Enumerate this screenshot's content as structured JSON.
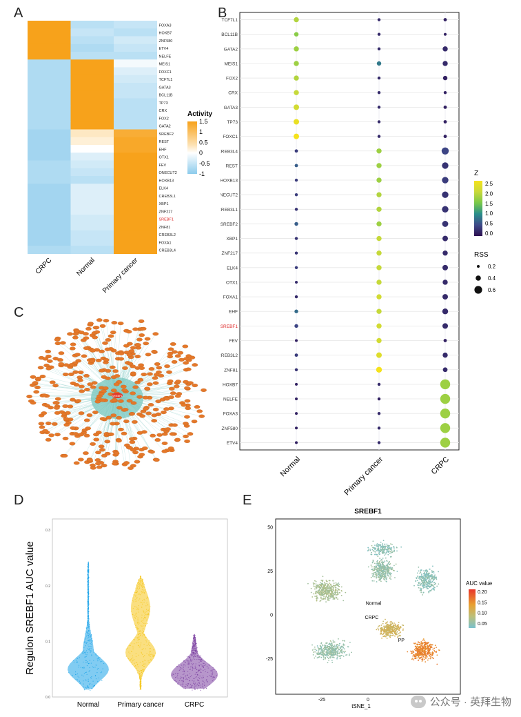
{
  "panels": {
    "A": {
      "letter": "A",
      "legend_title": "Activity",
      "legend_ticks": [
        "1.5",
        "1",
        "0.5",
        "0",
        "-0.5",
        "-1"
      ],
      "columns": [
        "CRPC",
        "Normal",
        "Primary cancer"
      ],
      "rows": [
        "FOXA3",
        "HOXB7",
        "ZNF580",
        "ETV4",
        "NELFE",
        "MEIS1",
        "FOXC1",
        "TCF7L1",
        "GATA3",
        "BCL11B",
        "TP73",
        "CRX",
        "FOX2",
        "GATA2",
        "SREBF2",
        "REST",
        "EHF",
        "OTX1",
        "FEV",
        "ONECUT2",
        "HOXB13",
        "ELK4",
        "CREB3L1",
        "XBP1",
        "ZNF217",
        "SREBF1",
        "ZNF81",
        "CREB3L2",
        "FOXA1",
        "CREB3L4"
      ],
      "highlight_row": "SREBF1",
      "values": [
        [
          1.5,
          -0.6,
          -0.5
        ],
        [
          1.5,
          -0.5,
          -0.6
        ],
        [
          1.5,
          -0.6,
          -0.4
        ],
        [
          1.5,
          -0.7,
          -0.5
        ],
        [
          1.5,
          -0.6,
          -0.6
        ],
        [
          -0.7,
          1.5,
          -0.1
        ],
        [
          -0.7,
          1.5,
          -0.3
        ],
        [
          -0.7,
          1.5,
          -0.4
        ],
        [
          -0.7,
          1.5,
          -0.5
        ],
        [
          -0.7,
          1.5,
          -0.5
        ],
        [
          -0.7,
          1.5,
          -0.6
        ],
        [
          -0.7,
          1.5,
          -0.6
        ],
        [
          -0.7,
          1.5,
          -0.6
        ],
        [
          -0.7,
          1.5,
          -0.6
        ],
        [
          -0.8,
          0.3,
          1.3
        ],
        [
          -0.8,
          0.2,
          1.4
        ],
        [
          -0.8,
          0.0,
          1.4
        ],
        [
          -0.8,
          -0.3,
          1.5
        ],
        [
          -0.7,
          -0.4,
          1.5
        ],
        [
          -0.7,
          -0.5,
          1.5
        ],
        [
          -0.7,
          -0.6,
          1.5
        ],
        [
          -0.8,
          -0.3,
          1.5
        ],
        [
          -0.8,
          -0.3,
          1.5
        ],
        [
          -0.8,
          -0.3,
          1.5
        ],
        [
          -0.8,
          -0.3,
          1.5
        ],
        [
          -0.8,
          -0.4,
          1.5
        ],
        [
          -0.8,
          -0.4,
          1.5
        ],
        [
          -0.8,
          -0.5,
          1.5
        ],
        [
          -0.8,
          -0.5,
          1.5
        ],
        [
          -0.7,
          -0.6,
          1.5
        ]
      ]
    },
    "B": {
      "letter": "B",
      "rows": [
        "TCF7L1",
        "BCL11B",
        "GATA2",
        "MEIS1",
        "FOX2",
        "CRX",
        "GATA3",
        "TP73",
        "FOXC1",
        "CREB3L4",
        "REST",
        "HOXB13",
        "ONECUT2",
        "CREB3L1",
        "SREBF2",
        "XBP1",
        "ZNF217",
        "ELK4",
        "OTX1",
        "FOXA1",
        "EHF",
        "SREBF1",
        "FEV",
        "CREB3L2",
        "ZNF81",
        "HOXB7",
        "NELFE",
        "FOXA3",
        "ZNF580",
        "ETV4"
      ],
      "highlight_row": "SREBF1",
      "columns": [
        "Normal",
        "Primary cancer",
        "CRPC"
      ],
      "z_legend_title": "Z",
      "z_ticks": [
        "2.5",
        "2.0",
        "1.5",
        "1.0",
        "0.5",
        "0.0"
      ],
      "rss_legend_title": "RSS",
      "rss_ticks": [
        "0.2",
        "0.4",
        "0.6"
      ],
      "z": [
        [
          2.1,
          0.3,
          0.2
        ],
        [
          1.9,
          0.3,
          0.2
        ],
        [
          2.0,
          0.3,
          0.3
        ],
        [
          2.0,
          1.0,
          0.3
        ],
        [
          2.1,
          0.3,
          0.2
        ],
        [
          2.2,
          0.3,
          0.2
        ],
        [
          2.3,
          0.3,
          0.2
        ],
        [
          2.5,
          0.3,
          0.2
        ],
        [
          2.6,
          0.3,
          0.2
        ],
        [
          0.5,
          2.0,
          0.6
        ],
        [
          0.8,
          2.0,
          0.4
        ],
        [
          0.5,
          2.0,
          0.5
        ],
        [
          0.5,
          2.1,
          0.4
        ],
        [
          0.4,
          2.1,
          0.4
        ],
        [
          0.8,
          2.0,
          0.4
        ],
        [
          0.4,
          2.2,
          0.3
        ],
        [
          0.4,
          2.2,
          0.3
        ],
        [
          0.5,
          2.2,
          0.3
        ],
        [
          0.3,
          2.2,
          0.3
        ],
        [
          0.3,
          2.3,
          0.3
        ],
        [
          0.9,
          2.2,
          0.3
        ],
        [
          0.6,
          2.3,
          0.3
        ],
        [
          0.2,
          2.3,
          0.2
        ],
        [
          0.5,
          2.4,
          0.3
        ],
        [
          0.4,
          2.6,
          0.3
        ],
        [
          0.2,
          0.3,
          2.0
        ],
        [
          0.2,
          0.2,
          2.0
        ],
        [
          0.2,
          0.3,
          2.0
        ],
        [
          0.2,
          0.3,
          2.0
        ],
        [
          0.2,
          0.3,
          2.0
        ]
      ],
      "rss": [
        [
          0.25,
          0.1,
          0.12
        ],
        [
          0.2,
          0.1,
          0.08
        ],
        [
          0.25,
          0.1,
          0.25
        ],
        [
          0.25,
          0.2,
          0.25
        ],
        [
          0.25,
          0.1,
          0.2
        ],
        [
          0.25,
          0.1,
          0.1
        ],
        [
          0.28,
          0.1,
          0.12
        ],
        [
          0.28,
          0.1,
          0.12
        ],
        [
          0.28,
          0.1,
          0.12
        ],
        [
          0.12,
          0.25,
          0.4
        ],
        [
          0.12,
          0.25,
          0.35
        ],
        [
          0.1,
          0.25,
          0.35
        ],
        [
          0.1,
          0.25,
          0.35
        ],
        [
          0.1,
          0.25,
          0.35
        ],
        [
          0.15,
          0.25,
          0.32
        ],
        [
          0.1,
          0.25,
          0.28
        ],
        [
          0.1,
          0.25,
          0.25
        ],
        [
          0.1,
          0.25,
          0.28
        ],
        [
          0.08,
          0.25,
          0.25
        ],
        [
          0.1,
          0.25,
          0.28
        ],
        [
          0.15,
          0.25,
          0.3
        ],
        [
          0.15,
          0.25,
          0.28
        ],
        [
          0.08,
          0.25,
          0.12
        ],
        [
          0.12,
          0.28,
          0.25
        ],
        [
          0.1,
          0.3,
          0.22
        ],
        [
          0.08,
          0.1,
          0.6
        ],
        [
          0.08,
          0.1,
          0.6
        ],
        [
          0.08,
          0.1,
          0.6
        ],
        [
          0.08,
          0.1,
          0.6
        ],
        [
          0.08,
          0.1,
          0.6
        ]
      ]
    },
    "C": {
      "letter": "C",
      "center_label": "SREBF1"
    },
    "D": {
      "letter": "D",
      "ylabel": "Regulon SREBF1 AUC value",
      "yticks": [
        "0.0",
        "0.1",
        "0.2",
        "0.3"
      ],
      "groups": [
        "Normal",
        "Primary cancer",
        "CRPC"
      ],
      "colors": [
        "#1aa3e8",
        "#f5c518",
        "#7b3fa0"
      ]
    },
    "E": {
      "letter": "E",
      "title": "SREBF1",
      "xlabel": "tSNE_1",
      "xticks": [
        "-25",
        "0",
        "25"
      ],
      "yticks": [
        "50",
        "25",
        "0",
        "-25"
      ],
      "labels": [
        "Normal",
        "CRPC",
        "PP"
      ],
      "legend_title": "AUC value",
      "legend_ticks": [
        "0.20",
        "0.15",
        "0.10",
        "0.05"
      ]
    }
  },
  "watermark": "公众号 · 英拜生物",
  "chart_data": [
    {
      "type": "heatmap",
      "title": "A",
      "x": [
        "CRPC",
        "Normal",
        "Primary cancer"
      ],
      "y": [
        "FOXA3",
        "HOXB7",
        "ZNF580",
        "ETV4",
        "NELFE",
        "MEIS1",
        "FOXC1",
        "TCF7L1",
        "GATA3",
        "BCL11B",
        "TP73",
        "CRX",
        "FOX2",
        "GATA2",
        "SREBF2",
        "REST",
        "EHF",
        "OTX1",
        "FEV",
        "ONECUT2",
        "HOXB13",
        "ELK4",
        "CREB3L1",
        "XBP1",
        "ZNF217",
        "SREBF1",
        "ZNF81",
        "CREB3L2",
        "FOXA1",
        "CREB3L4"
      ],
      "colorbar_label": "Activity",
      "range": [
        -1,
        1.5
      ]
    },
    {
      "type": "scatter",
      "title": "B",
      "x": [
        "Normal",
        "Primary cancer",
        "CRPC"
      ],
      "color_label": "Z",
      "size_label": "RSS"
    },
    {
      "type": "other",
      "title": "D",
      "ylabel": "Regulon SREBF1 AUC value",
      "categories": [
        "Normal",
        "Primary cancer",
        "CRPC"
      ],
      "ylim": [
        0,
        0.3
      ],
      "medians": [
        0.05,
        0.09,
        0.04
      ]
    },
    {
      "type": "scatter",
      "title": "E",
      "xlabel": "tSNE_1",
      "color_label": "AUC value",
      "color_range": [
        0.05,
        0.2
      ]
    }
  ]
}
